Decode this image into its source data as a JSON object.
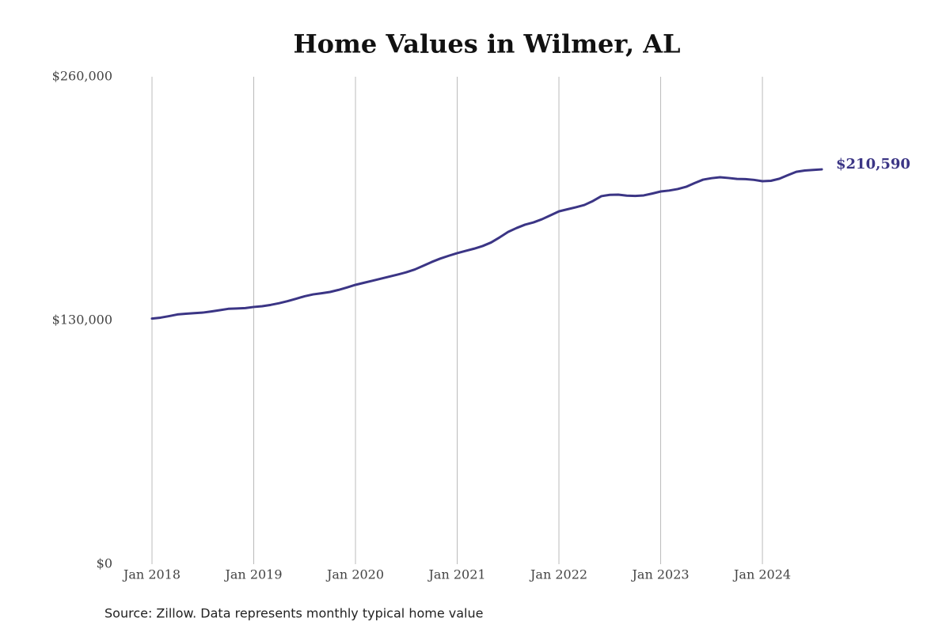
{
  "chart_data": {
    "type": "line",
    "title": "Home Values in Wilmer, AL",
    "source": "Source: Zillow. Data represents monthly typical home value",
    "x": [
      "2018-01",
      "2018-02",
      "2018-03",
      "2018-04",
      "2018-05",
      "2018-06",
      "2018-07",
      "2018-08",
      "2018-09",
      "2018-10",
      "2018-11",
      "2018-12",
      "2019-01",
      "2019-02",
      "2019-03",
      "2019-04",
      "2019-05",
      "2019-06",
      "2019-07",
      "2019-08",
      "2019-09",
      "2019-10",
      "2019-11",
      "2019-12",
      "2020-01",
      "2020-02",
      "2020-03",
      "2020-04",
      "2020-05",
      "2020-06",
      "2020-07",
      "2020-08",
      "2020-09",
      "2020-10",
      "2020-11",
      "2020-12",
      "2021-01",
      "2021-02",
      "2021-03",
      "2021-04",
      "2021-05",
      "2021-06",
      "2021-07",
      "2021-08",
      "2021-09",
      "2021-10",
      "2021-11",
      "2021-12",
      "2022-01",
      "2022-02",
      "2022-03",
      "2022-04",
      "2022-05",
      "2022-06",
      "2022-07",
      "2022-08",
      "2022-09",
      "2022-10",
      "2022-11",
      "2022-12",
      "2023-01",
      "2023-02",
      "2023-03",
      "2023-04",
      "2023-05",
      "2023-06",
      "2023-07",
      "2023-08",
      "2023-09",
      "2023-10",
      "2023-11",
      "2023-12",
      "2024-01",
      "2024-02",
      "2024-03",
      "2024-04",
      "2024-05",
      "2024-06",
      "2024-07",
      "2024-08"
    ],
    "values": [
      131000,
      131500,
      132300,
      133200,
      133600,
      133900,
      134200,
      134800,
      135500,
      136200,
      136400,
      136600,
      137200,
      137600,
      138300,
      139200,
      140300,
      141600,
      142900,
      143900,
      144500,
      145200,
      146300,
      147600,
      149000,
      150100,
      151200,
      152300,
      153400,
      154500,
      155700,
      157200,
      159200,
      161200,
      163000,
      164500,
      165900,
      167100,
      168300,
      169700,
      171600,
      174300,
      177200,
      179300,
      181100,
      182300,
      184000,
      186100,
      188200,
      189300,
      190400,
      191600,
      193700,
      196300,
      197000,
      197100,
      196600,
      196400,
      196700,
      197700,
      198800,
      199300,
      200100,
      201300,
      203300,
      205100,
      205900,
      206400,
      206000,
      205500,
      205400,
      205000,
      204300,
      204500,
      205600,
      207500,
      209300,
      210000,
      210300,
      210590
    ],
    "value_labels": [
      null,
      null,
      null,
      null,
      null,
      null,
      null,
      null,
      null,
      null,
      null,
      null,
      null,
      null,
      null,
      null,
      null,
      null,
      null,
      null,
      null,
      null,
      null,
      null,
      null,
      null,
      null,
      null,
      null,
      null,
      null,
      null,
      null,
      null,
      null,
      null,
      null,
      null,
      null,
      null,
      null,
      null,
      null,
      null,
      null,
      null,
      null,
      null,
      null,
      null,
      null,
      null,
      null,
      null,
      null,
      null,
      null,
      null,
      null,
      null,
      null,
      null,
      null,
      null,
      null,
      null,
      null,
      null,
      null,
      null,
      null,
      null,
      null,
      null,
      null,
      null,
      null,
      null,
      null,
      "$210,590"
    ],
    "color": "#3b3585",
    "xlim": [
      "2018-01",
      "2024-08"
    ],
    "xticks": [
      {
        "value": "2018-01",
        "label": "Jan 2018"
      },
      {
        "value": "2019-01",
        "label": "Jan 2019"
      },
      {
        "value": "2020-01",
        "label": "Jan 2020"
      },
      {
        "value": "2021-01",
        "label": "Jan 2021"
      },
      {
        "value": "2022-01",
        "label": "Jan 2022"
      },
      {
        "value": "2023-01",
        "label": "Jan 2023"
      },
      {
        "value": "2024-01",
        "label": "Jan 2024"
      }
    ],
    "ylim": [
      0,
      260000
    ],
    "yticks": [
      {
        "value": 0,
        "label": "$0"
      },
      {
        "value": 130000,
        "label": "$130,000"
      },
      {
        "value": 260000,
        "label": "$260,000"
      }
    ],
    "grid": "x"
  }
}
